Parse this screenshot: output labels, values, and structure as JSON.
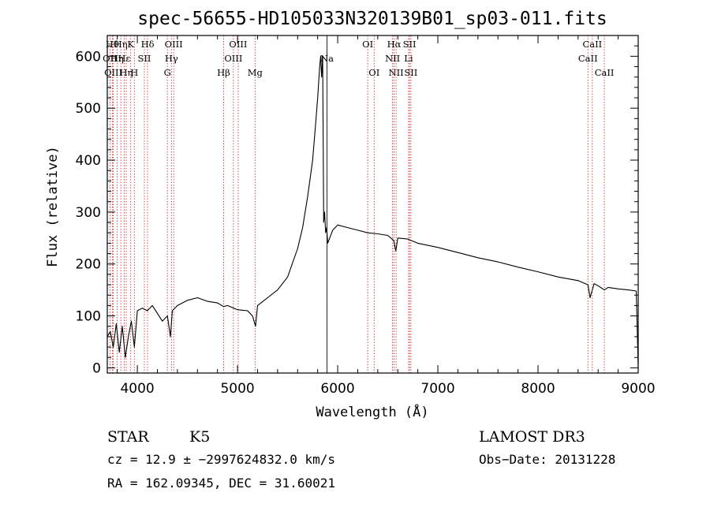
{
  "chart_data": {
    "type": "line",
    "title": "spec-56655-HD105033N320139B01_sp03-011.fits",
    "xlabel": "Wavelength (Å)",
    "ylabel": "Flux (relative)",
    "xlim": [
      3700,
      9000
    ],
    "ylim": [
      -10,
      640
    ],
    "x_ticks": [
      4000,
      5000,
      6000,
      7000,
      8000,
      9000
    ],
    "y_ticks": [
      0,
      100,
      200,
      300,
      400,
      500,
      600
    ],
    "series": [
      {
        "name": "flux",
        "x": [
          3700,
          3730,
          3760,
          3790,
          3820,
          3850,
          3880,
          3910,
          3940,
          3970,
          4000,
          4050,
          4100,
          4150,
          4200,
          4250,
          4300,
          4330,
          4350,
          4400,
          4450,
          4500,
          4600,
          4700,
          4800,
          4860,
          4900,
          5000,
          5100,
          5150,
          5180,
          5200,
          5300,
          5400,
          5500,
          5600,
          5650,
          5700,
          5750,
          5780,
          5800,
          5820,
          5830,
          5840,
          5850,
          5860,
          5870,
          5880,
          5890,
          5900,
          5950,
          6000,
          6100,
          6200,
          6300,
          6400,
          6500,
          6560,
          6580,
          6600,
          6700,
          6800,
          7000,
          7200,
          7400,
          7600,
          7800,
          8000,
          8200,
          8400,
          8498,
          8520,
          8542,
          8560,
          8600,
          8662,
          8700,
          8800,
          8900,
          8980,
          9000
        ],
        "y": [
          60,
          70,
          40,
          85,
          30,
          80,
          20,
          60,
          90,
          40,
          110,
          115,
          110,
          120,
          105,
          90,
          100,
          60,
          110,
          120,
          125,
          130,
          135,
          128,
          125,
          118,
          120,
          112,
          110,
          100,
          80,
          120,
          135,
          150,
          175,
          230,
          270,
          330,
          400,
          470,
          520,
          580,
          600,
          560,
          600,
          280,
          300,
          260,
          270,
          240,
          265,
          275,
          270,
          265,
          260,
          258,
          255,
          245,
          225,
          250,
          248,
          240,
          232,
          222,
          212,
          204,
          194,
          185,
          175,
          168,
          160,
          135,
          150,
          162,
          158,
          150,
          155,
          152,
          150,
          148,
          0
        ]
      }
    ],
    "lines": [
      {
        "x": 3727,
        "row": 1,
        "label": "OII"
      },
      {
        "x": 3750,
        "row": 0,
        "label": "Hθ"
      },
      {
        "x": 3760,
        "row": 2,
        "label": "OIII"
      },
      {
        "x": 3797,
        "row": 1,
        "label": "Hη"
      },
      {
        "x": 3835,
        "row": 0,
        "label": "Hη"
      },
      {
        "x": 3869,
        "row": 1,
        "label": "Hε"
      },
      {
        "x": 3889,
        "row": 2,
        "label": "Hη"
      },
      {
        "x": 3934,
        "row": 0,
        "label": "K"
      },
      {
        "x": 3970,
        "row": 2,
        "label": "H"
      },
      {
        "x": 4070,
        "row": 1,
        "label": "SII"
      },
      {
        "x": 4102,
        "row": 0,
        "label": "Hδ"
      },
      {
        "x": 4300,
        "row": 2,
        "label": "G"
      },
      {
        "x": 4340,
        "row": 1,
        "label": "Hγ"
      },
      {
        "x": 4363,
        "row": 0,
        "label": "OIII"
      },
      {
        "x": 4861,
        "row": 2,
        "label": "Hβ"
      },
      {
        "x": 4959,
        "row": 1,
        "label": "OIII"
      },
      {
        "x": 5007,
        "row": 0,
        "label": "OIII"
      },
      {
        "x": 5175,
        "row": 2,
        "label": "Mg"
      },
      {
        "x": 5893,
        "row": 1,
        "label": "Na"
      },
      {
        "x": 6300,
        "row": 0,
        "label": "OI"
      },
      {
        "x": 6364,
        "row": 2,
        "label": "OI"
      },
      {
        "x": 6548,
        "row": 1,
        "label": "NII"
      },
      {
        "x": 6563,
        "row": 0,
        "label": "Hα"
      },
      {
        "x": 6583,
        "row": 2,
        "label": "NII"
      },
      {
        "x": 6708,
        "row": 1,
        "label": "Li"
      },
      {
        "x": 6717,
        "row": 0,
        "label": "SII"
      },
      {
        "x": 6731,
        "row": 2,
        "label": "SII"
      },
      {
        "x": 8498,
        "row": 1,
        "label": "CaII"
      },
      {
        "x": 8542,
        "row": 0,
        "label": "CaII"
      },
      {
        "x": 8662,
        "row": 2,
        "label": "CaII"
      }
    ],
    "grid": false,
    "legend": "none"
  },
  "info": {
    "class_label": "STAR",
    "subclass": "K5",
    "survey": "LAMOST DR3",
    "cz_line": "cz = 12.9 ± −2997624832.0 km/s",
    "obs_date": "Obs−Date: 20131228",
    "radec_line": "RA = 162.09345, DEC =  31.60021"
  },
  "colors": {
    "spectrum": "#000000",
    "line_markers": "#cc2222",
    "axes": "#000000"
  }
}
